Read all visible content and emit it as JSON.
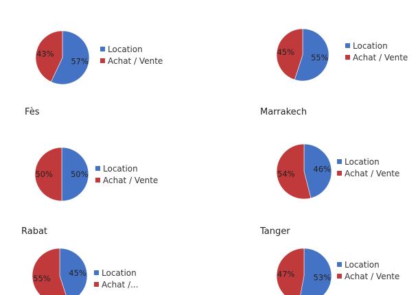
{
  "colors": {
    "location": "#4472C4",
    "achat_vente": "#C0393B"
  },
  "chart_data": [
    {
      "type": "pie",
      "title": "",
      "categories": [
        "Location",
        "Achat / Vente"
      ],
      "values": [
        57,
        43
      ],
      "labels": [
        "57%",
        "43%"
      ],
      "legend": [
        "Location",
        "Achat / Vente"
      ]
    },
    {
      "type": "pie",
      "title": "",
      "categories": [
        "Location",
        "Achat / Vente"
      ],
      "values": [
        55,
        45
      ],
      "labels": [
        "55%",
        "45%"
      ],
      "legend": [
        "Location",
        "Achat / Vente"
      ]
    },
    {
      "type": "pie",
      "title": "Fès",
      "categories": [
        "Location",
        "Achat / Vente"
      ],
      "values": [
        50,
        50
      ],
      "labels": [
        "50%",
        "50%"
      ],
      "legend": [
        "Location",
        "Achat / Vente"
      ]
    },
    {
      "type": "pie",
      "title": "Marrakech",
      "categories": [
        "Location",
        "Achat / Vente"
      ],
      "values": [
        46,
        54
      ],
      "labels": [
        "46%",
        "54%"
      ],
      "legend": [
        "Location",
        "Achat / Vente"
      ]
    },
    {
      "type": "pie",
      "title": "Rabat",
      "categories": [
        "Location",
        "Achat / Vente"
      ],
      "values": [
        45,
        55
      ],
      "labels": [
        "45%",
        "55%"
      ],
      "legend": [
        "Location",
        "Achat /..."
      ]
    },
    {
      "type": "pie",
      "title": "Tanger",
      "categories": [
        "Location",
        "Achat / Vente"
      ],
      "values": [
        53,
        47
      ],
      "labels": [
        "53%",
        "47%"
      ],
      "legend": [
        "Location",
        "Achat / Vente"
      ]
    }
  ]
}
